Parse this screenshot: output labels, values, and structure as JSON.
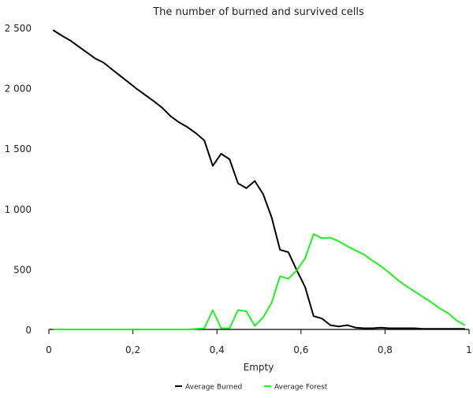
{
  "chart_data": {
    "type": "line",
    "title": "The number of burned and survived cells",
    "xlabel": "Empty",
    "ylabel": "",
    "xlim": [
      0,
      1
    ],
    "ylim": [
      0,
      2500
    ],
    "x_ticks": [
      0,
      0.2,
      0.4,
      0.6,
      0.8,
      1
    ],
    "x_tick_labels": [
      "0",
      "0,2",
      "0,4",
      "0,6",
      "0,8",
      "1"
    ],
    "y_ticks": [
      0,
      500,
      1000,
      1500,
      2000,
      2500
    ],
    "y_tick_labels": [
      "0",
      "500",
      "1 000",
      "1 500",
      "2 000",
      "2 500"
    ],
    "grid": false,
    "legend_position": "bottom",
    "series": [
      {
        "name": "Average Burned",
        "color": "#000000",
        "x": [
          0.01,
          0.03,
          0.05,
          0.07,
          0.09,
          0.11,
          0.13,
          0.15,
          0.17,
          0.19,
          0.21,
          0.23,
          0.25,
          0.27,
          0.29,
          0.31,
          0.33,
          0.35,
          0.37,
          0.39,
          0.41,
          0.43,
          0.45,
          0.47,
          0.49,
          0.51,
          0.53,
          0.55,
          0.57,
          0.59,
          0.61,
          0.63,
          0.65,
          0.67,
          0.69,
          0.71,
          0.73,
          0.75,
          0.77,
          0.79,
          0.81,
          0.83,
          0.85,
          0.87,
          0.89,
          0.91,
          0.93,
          0.95,
          0.97,
          0.99
        ],
        "values": [
          2480,
          2435,
          2395,
          2345,
          2295,
          2245,
          2210,
          2155,
          2100,
          2045,
          1990,
          1940,
          1890,
          1835,
          1765,
          1715,
          1675,
          1625,
          1565,
          1355,
          1455,
          1410,
          1210,
          1170,
          1230,
          1120,
          930,
          660,
          640,
          490,
          350,
          110,
          90,
          35,
          25,
          35,
          15,
          10,
          10,
          15,
          10,
          10,
          10,
          10,
          5,
          5,
          5,
          5,
          5,
          5
        ]
      },
      {
        "name": "Average Forest",
        "color": "#22ee22",
        "x": [
          0.01,
          0.03,
          0.05,
          0.07,
          0.09,
          0.11,
          0.13,
          0.15,
          0.17,
          0.19,
          0.21,
          0.23,
          0.25,
          0.27,
          0.29,
          0.31,
          0.33,
          0.35,
          0.37,
          0.39,
          0.41,
          0.43,
          0.45,
          0.47,
          0.49,
          0.51,
          0.53,
          0.55,
          0.57,
          0.59,
          0.61,
          0.63,
          0.65,
          0.67,
          0.69,
          0.71,
          0.73,
          0.75,
          0.77,
          0.79,
          0.81,
          0.83,
          0.85,
          0.87,
          0.89,
          0.91,
          0.93,
          0.95,
          0.97,
          0.99
        ],
        "values": [
          0,
          0,
          0,
          0,
          0,
          0,
          0,
          0,
          0,
          0,
          0,
          0,
          0,
          0,
          0,
          0,
          0,
          5,
          10,
          160,
          10,
          10,
          160,
          150,
          30,
          100,
          220,
          440,
          420,
          490,
          590,
          790,
          755,
          760,
          730,
          690,
          655,
          620,
          570,
          525,
          470,
          410,
          360,
          315,
          270,
          225,
          175,
          135,
          75,
          35
        ]
      }
    ]
  }
}
